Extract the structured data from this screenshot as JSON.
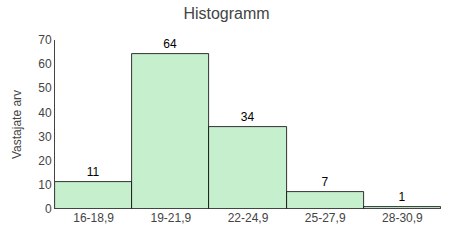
{
  "chart_data": {
    "type": "bar",
    "title": "Histogramm",
    "ylabel": "Vastajate arv",
    "categories": [
      "16-18,9",
      "19-21,9",
      "22-24,9",
      "25-27,9",
      "28-30,9"
    ],
    "values": [
      11,
      64,
      34,
      7,
      1
    ],
    "color": "#c6efce",
    "ylim": [
      0,
      70
    ],
    "yticks": [
      0,
      10,
      20,
      30,
      40,
      50,
      60,
      70
    ],
    "grid": false,
    "data_labels": true
  }
}
